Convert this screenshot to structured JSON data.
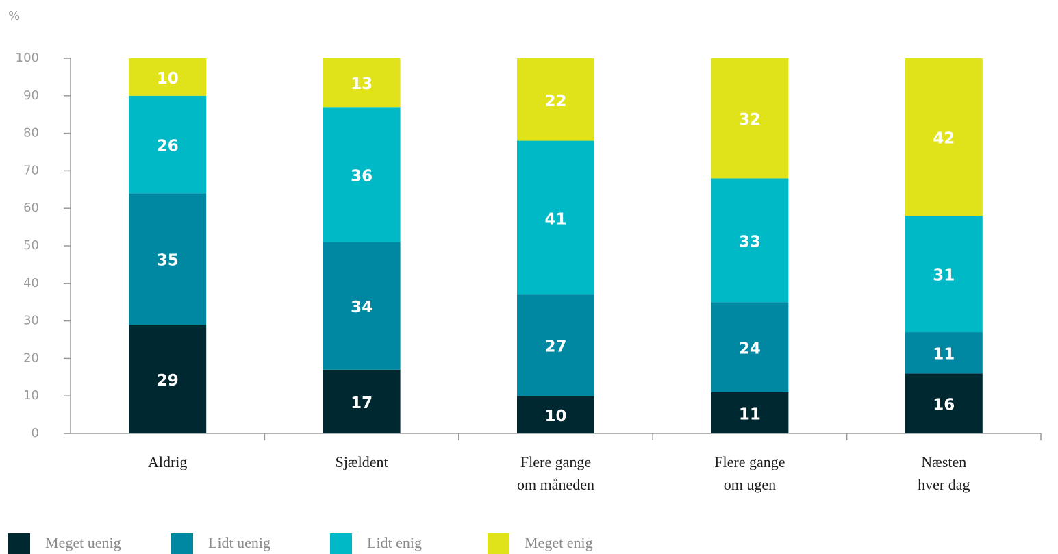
{
  "chart_data": {
    "type": "stacked_bar",
    "ylabel": "%",
    "categories": [
      "Aldrig",
      "Sjældent",
      "Flere gange\nom måneden",
      "Flere gange\nom ugen",
      "Næsten\nhver dag"
    ],
    "series": [
      {
        "name": "Meget uenig",
        "color": "#002830",
        "values": [
          29,
          17,
          10,
          11,
          16
        ]
      },
      {
        "name": "Lidt uenig",
        "color": "#0088a2",
        "values": [
          35,
          34,
          27,
          24,
          11
        ]
      },
      {
        "name": "Lidt enig",
        "color": "#00b9c6",
        "values": [
          26,
          36,
          41,
          33,
          31
        ]
      },
      {
        "name": "Meget enig",
        "color": "#e1e31a",
        "values": [
          10,
          13,
          22,
          32,
          42
        ]
      }
    ],
    "ylim": [
      0,
      100
    ],
    "yticks": [
      0,
      10,
      20,
      30,
      40,
      50,
      60,
      70,
      80,
      90,
      100
    ]
  }
}
